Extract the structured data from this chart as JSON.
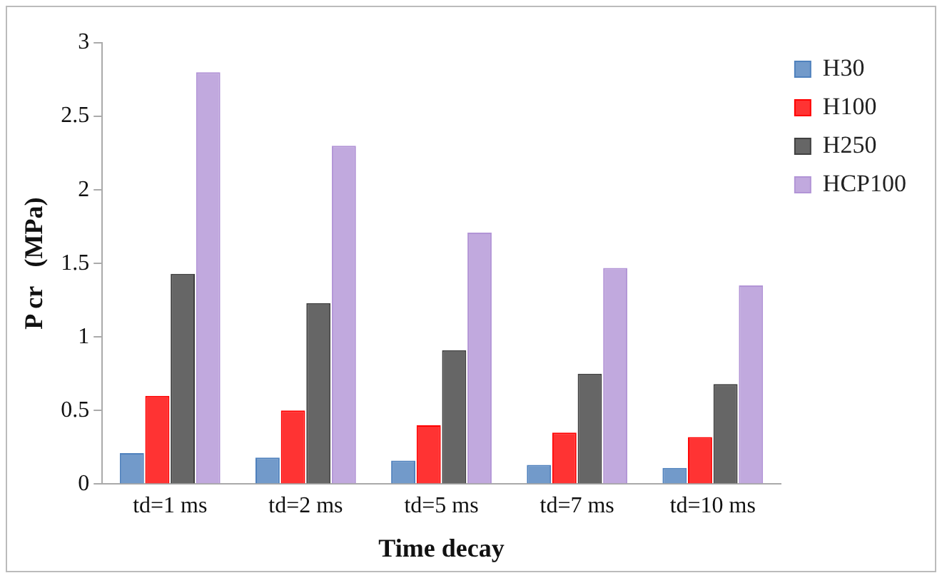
{
  "chart_data": {
    "type": "bar",
    "xlabel": "Time decay",
    "ylabel": "P cr   (MPa)",
    "categories": [
      "td=1 ms",
      "td=2 ms",
      "td=5 ms",
      "td=7 ms",
      "td=10 ms"
    ],
    "series": [
      {
        "name": "H30",
        "color": "#4f81bd",
        "values": [
          0.21,
          0.18,
          0.16,
          0.13,
          0.11
        ]
      },
      {
        "name": "H100",
        "color": "#ff0000",
        "values": [
          0.6,
          0.5,
          0.4,
          0.35,
          0.32
        ]
      },
      {
        "name": "H250",
        "color": "#404040",
        "values": [
          1.43,
          1.23,
          0.91,
          0.75,
          0.68
        ]
      },
      {
        "name": "HCP100",
        "color": "#b294d6",
        "values": [
          2.8,
          2.3,
          1.71,
          1.47,
          1.35
        ]
      }
    ],
    "ylim": [
      0,
      3
    ],
    "yticks": [
      0,
      {
        "value": 0.5,
        "label": "0.5"
      },
      1,
      {
        "value": 1.5,
        "label": "1.5"
      },
      2,
      {
        "value": 2.5,
        "label": "2.5"
      },
      3
    ],
    "grid": false,
    "legend": "top right"
  }
}
